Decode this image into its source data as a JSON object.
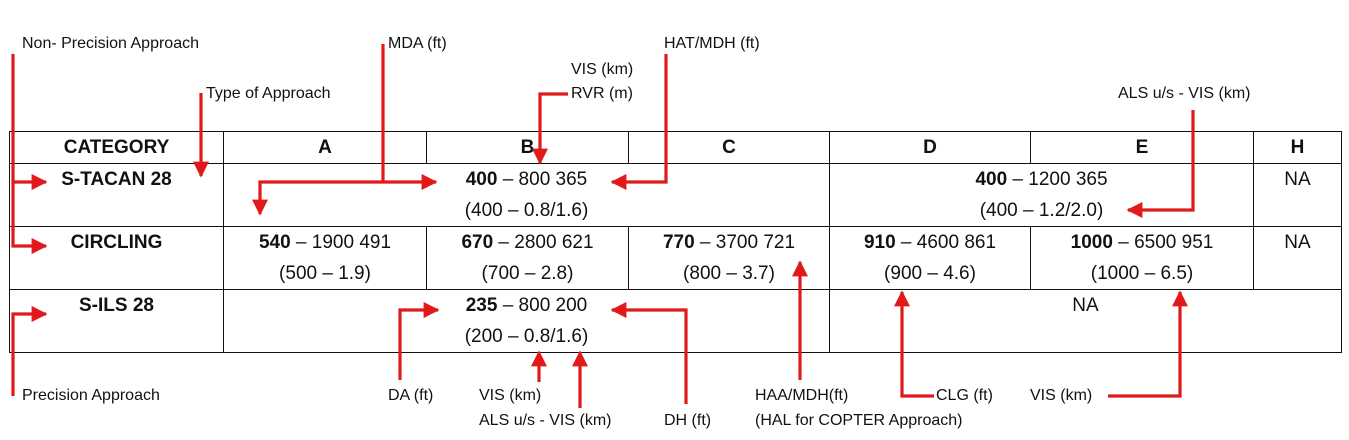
{
  "colors": {
    "arrow": "#e01a1a",
    "text": "#111111",
    "border": "#111111",
    "background": "#ffffff"
  },
  "labels": {
    "non_precision": "Non- Precision Approach",
    "mda": "MDA (ft)",
    "hat_mdh": "HAT/MDH (ft)",
    "vis_km_top": "VIS (km)",
    "rvr": "RVR (m)",
    "type_of_approach": "Type of Approach",
    "als_vis_top": "ALS u/s - VIS (km)",
    "precision": "Precision Approach",
    "da": "DA (ft)",
    "vis_km_bottom": "VIS (km)",
    "als_vis_bottom": "ALS u/s - VIS (km)",
    "dh": "DH (ft)",
    "haa_mdh": "HAA/MDH(ft)",
    "hal_copter": "(HAL for COPTER  Approach)",
    "clg": "CLG (ft)",
    "vis_km_right": "VIS (km)"
  },
  "table": {
    "headers": [
      "CATEGORY",
      "A",
      "B",
      "C",
      "D",
      "E",
      "H"
    ],
    "rows": [
      {
        "category": "S-TACAN 28",
        "abc": {
          "bold": "400",
          "rest": " – 800  365",
          "line2": "(400 – 0.8/1.6)"
        },
        "de": {
          "bold": "400",
          "rest": " – 1200 365",
          "line2": "(400 – 1.2/2.0)"
        },
        "h": "NA"
      },
      {
        "category": "CIRCLING",
        "a": {
          "bold": "540",
          "rest": " – 1900 491",
          "line2": "(500 – 1.9)"
        },
        "b": {
          "bold": "670",
          "rest": " – 2800 621",
          "line2": "(700 – 2.8)"
        },
        "c": {
          "bold": "770",
          "rest": " – 3700 721",
          "line2": "(800 – 3.7)"
        },
        "d": {
          "bold": "910",
          "rest": " – 4600 861",
          "line2": "(900 – 4.6)"
        },
        "e": {
          "bold": "1000",
          "rest": " – 6500 951",
          "line2": "(1000 – 6.5)"
        },
        "h": "NA"
      },
      {
        "category": "S-ILS 28",
        "abc": {
          "bold": "235",
          "rest": " – 800 200",
          "line2": "(200 – 0.8/1.6)"
        },
        "deh": "NA"
      }
    ]
  }
}
